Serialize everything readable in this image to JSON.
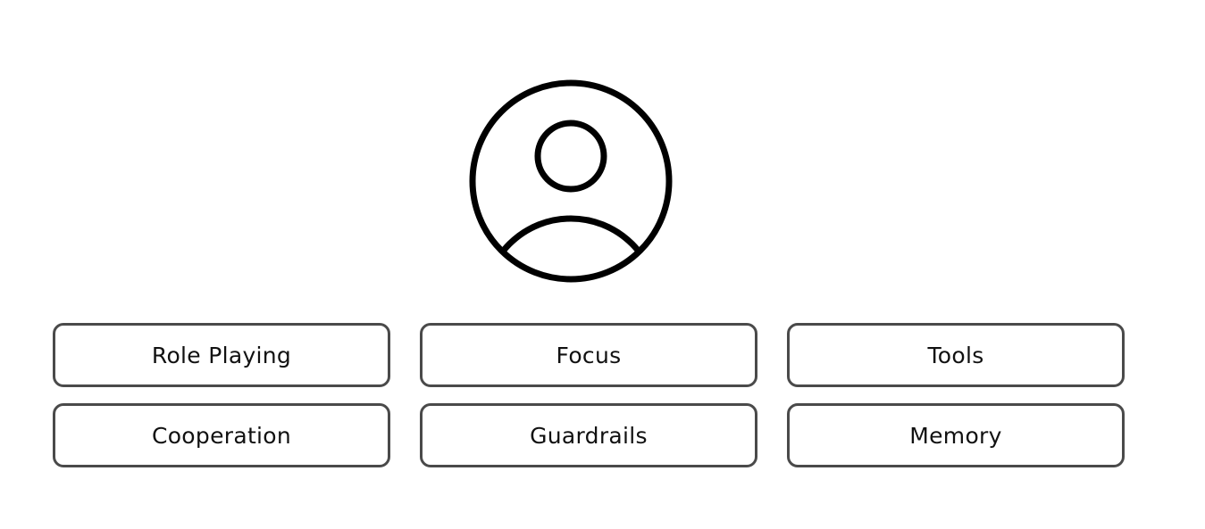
{
  "diagram": {
    "icon": "user-avatar-icon",
    "tiles": [
      {
        "label": "Role Playing"
      },
      {
        "label": "Focus"
      },
      {
        "label": "Tools"
      },
      {
        "label": "Cooperation"
      },
      {
        "label": "Guardrails"
      },
      {
        "label": "Memory"
      }
    ]
  }
}
